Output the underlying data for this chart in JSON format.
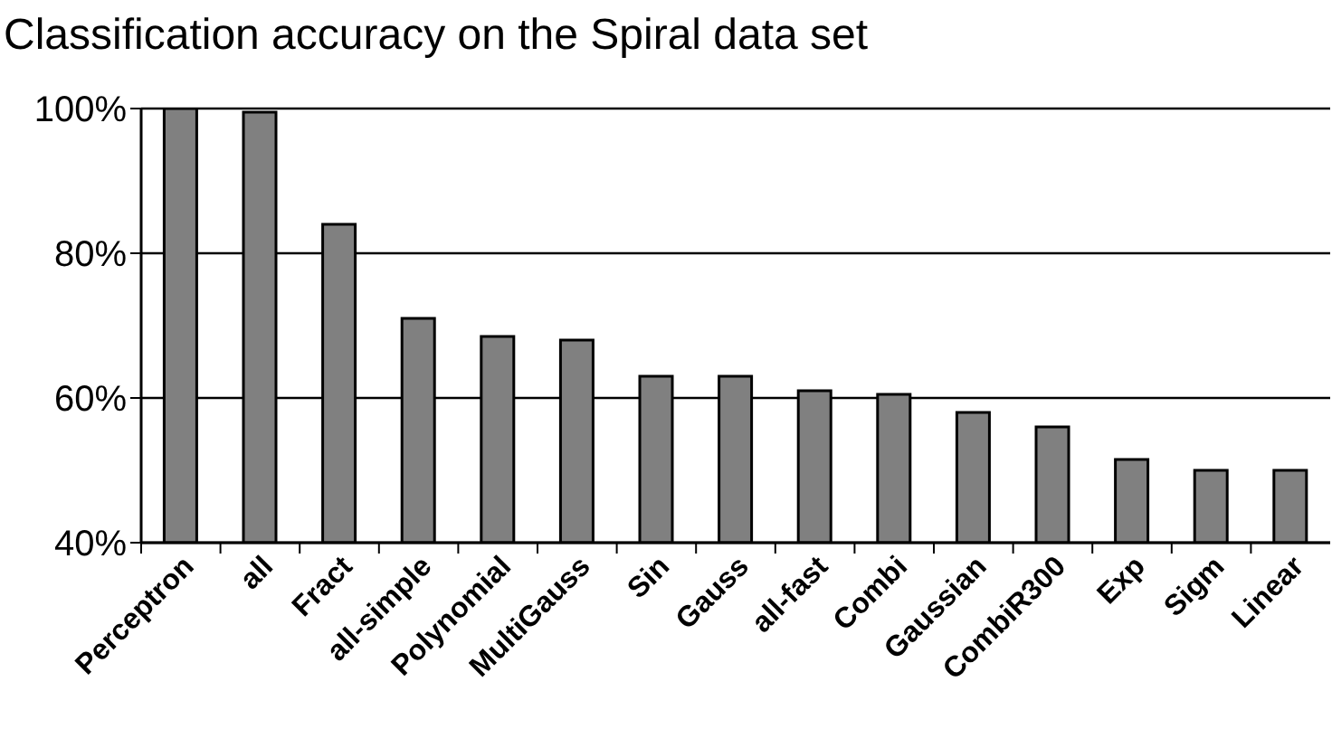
{
  "chart_data": {
    "type": "bar",
    "title": "Classification accuracy on the Spiral data set",
    "categories": [
      "Perceptron",
      "all",
      "Fract",
      "all-simple",
      "Polynomial",
      "MultiGauss",
      "Sin",
      "Gauss",
      "all-fast",
      "Combi",
      "Gaussian",
      "CombiR300",
      "Exp",
      "Sigm",
      "Linear"
    ],
    "values": [
      100,
      99.5,
      84,
      71,
      68.5,
      68,
      63,
      63,
      61,
      60.5,
      58,
      56,
      51.5,
      50,
      50
    ],
    "color": "#808080",
    "ylim": [
      40,
      100
    ],
    "yticks": [
      {
        "value": 40,
        "label": "40%"
      },
      {
        "value": 60,
        "label": "60%"
      },
      {
        "value": 80,
        "label": "80%"
      },
      {
        "value": 100,
        "label": "100%"
      }
    ],
    "grid": "y"
  }
}
